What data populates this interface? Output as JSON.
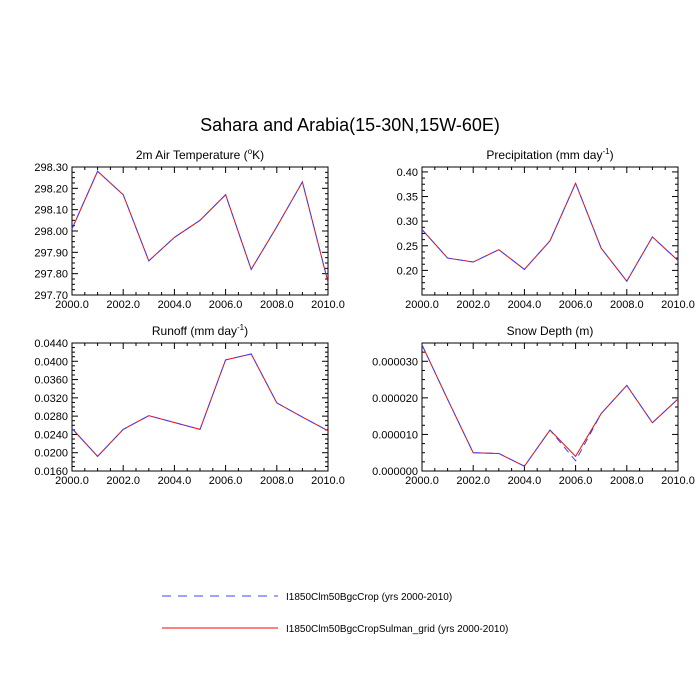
{
  "title": "Sahara and Arabia(15-30N,15W-60E)",
  "legend": {
    "entries": [
      {
        "label": "I1850Clm50BgcCrop (yrs 2000-2010)",
        "color": "#4040ff",
        "dash": "dashed"
      },
      {
        "label": "I1850Clm50BgcCropSulman_grid (yrs 2000-2010)",
        "color": "#ff0000",
        "dash": "solid"
      }
    ]
  },
  "chart_data": [
    {
      "type": "line",
      "title": "2m Air Temperature (",
      "title_sup": "o",
      "title_after": "K)",
      "x": [
        2000,
        2001,
        2002,
        2003,
        2004,
        2005,
        2006,
        2007,
        2008,
        2009,
        2010
      ],
      "xlim": [
        2000,
        2010
      ],
      "xticks": [
        "2000.0",
        "2002.0",
        "2004.0",
        "2006.0",
        "2008.0",
        "2010.0"
      ],
      "ylim": [
        297.7,
        298.3
      ],
      "yticks": [
        "297.70",
        "297.80",
        "297.90",
        "298.00",
        "298.10",
        "298.20",
        "298.30"
      ],
      "series": [
        {
          "values": [
            298.01,
            298.28,
            298.17,
            297.86,
            297.97,
            298.05,
            298.17,
            297.82,
            298.02,
            298.23,
            297.76
          ]
        },
        {
          "values": [
            298.01,
            298.28,
            298.17,
            297.86,
            297.97,
            298.05,
            298.17,
            297.82,
            298.02,
            298.23,
            297.76
          ]
        }
      ]
    },
    {
      "type": "line",
      "title": "Precipitation (mm day",
      "title_sup": "-1",
      "title_after": ")",
      "x": [
        2000,
        2001,
        2002,
        2003,
        2004,
        2005,
        2006,
        2007,
        2008,
        2009,
        2010
      ],
      "xlim": [
        2000,
        2010
      ],
      "xticks": [
        "2000.0",
        "2002.0",
        "2004.0",
        "2006.0",
        "2008.0",
        "2010.0"
      ],
      "ylim": [
        0.15,
        0.41
      ],
      "yticks": [
        "0.20",
        "0.25",
        "0.30",
        "0.35",
        "0.40"
      ],
      "series": [
        {
          "values": [
            0.283,
            0.225,
            0.217,
            0.242,
            0.202,
            0.26,
            0.377,
            0.245,
            0.178,
            0.268,
            0.22
          ]
        },
        {
          "values": [
            0.283,
            0.225,
            0.217,
            0.242,
            0.202,
            0.26,
            0.377,
            0.245,
            0.178,
            0.268,
            0.22
          ]
        }
      ]
    },
    {
      "type": "line",
      "title": "Runoff (mm day",
      "title_sup": "-1",
      "title_after": ")",
      "x": [
        2000,
        2001,
        2002,
        2003,
        2004,
        2005,
        2006,
        2007,
        2008,
        2009,
        2010
      ],
      "xlim": [
        2000,
        2010
      ],
      "xticks": [
        "2000.0",
        "2002.0",
        "2004.0",
        "2006.0",
        "2008.0",
        "2010.0"
      ],
      "ylim": [
        0.016,
        0.044
      ],
      "yticks": [
        "0.0160",
        "0.0200",
        "0.0240",
        "0.0280",
        "0.0320",
        "0.0360",
        "0.0400",
        "0.0440"
      ],
      "series": [
        {
          "values": [
            0.0253,
            0.0192,
            0.0251,
            0.0281,
            0.0266,
            0.0251,
            0.0403,
            0.0416,
            0.0309,
            0.0278,
            0.0248
          ]
        },
        {
          "values": [
            0.0253,
            0.0192,
            0.0251,
            0.0281,
            0.0266,
            0.0251,
            0.0403,
            0.0416,
            0.0309,
            0.0278,
            0.0248
          ]
        }
      ]
    },
    {
      "type": "line",
      "title": "Snow Depth (m)",
      "title_sup": "",
      "title_after": "",
      "x": [
        2000,
        2001,
        2002,
        2003,
        2004,
        2005,
        2006,
        2007,
        2008,
        2009,
        2010
      ],
      "xlim": [
        2000,
        2010
      ],
      "xticks": [
        "2000.0",
        "2002.0",
        "2004.0",
        "2006.0",
        "2008.0",
        "2010.0"
      ],
      "ylim": [
        0.0,
        3.5e-05
      ],
      "yticks": [
        "0.000000",
        "0.000010",
        "0.000020",
        "0.000030"
      ],
      "series": [
        {
          "values": [
            3.45e-05,
            1.96e-05,
            5e-06,
            4.8e-06,
            1.3e-06,
            1.12e-05,
            2.8e-06,
            1.57e-05,
            2.34e-05,
            1.32e-05,
            1.97e-05
          ]
        },
        {
          "values": [
            3.45e-05,
            1.96e-05,
            5e-06,
            4.8e-06,
            1.3e-06,
            1.12e-05,
            4e-06,
            1.57e-05,
            2.34e-05,
            1.32e-05,
            1.97e-05
          ]
        }
      ]
    }
  ]
}
